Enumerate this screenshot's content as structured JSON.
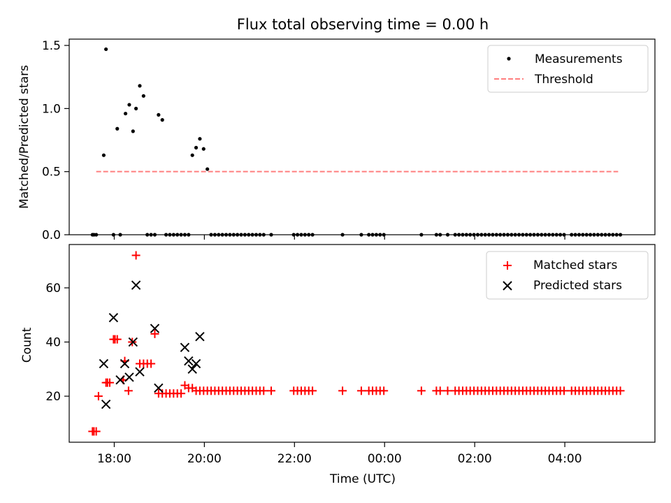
{
  "figure": {
    "title": "Flux total observing time = 0.00 h",
    "xlabel": "Time (UTC)"
  },
  "colors": {
    "measurement": "#000000",
    "threshold": "#ff7f7f",
    "matched": "#ff0000",
    "predicted": "#000000"
  },
  "chart_data": [
    {
      "type": "scatter",
      "panel": "top",
      "ylabel": "Matched/Predicted stars",
      "xlim": [
        "17:00",
        "06:00"
      ],
      "ylim": [
        0,
        1.55
      ],
      "yticks": [
        0.0,
        0.5,
        1.0,
        1.5
      ],
      "ytick_labels": [
        "0.0",
        "0.5",
        "1.0",
        "1.5"
      ],
      "xticks": [
        "18:00",
        "20:00",
        "22:00",
        "00:00",
        "02:00",
        "04:00"
      ],
      "xtick_labels_shown": false,
      "legend": "top-right",
      "series": [
        {
          "name": "Measurements",
          "marker": "dot",
          "x": [
            "17:31",
            "17:33",
            "17:36",
            "17:46",
            "17:49",
            "17:59",
            "18:04",
            "18:08",
            "18:15",
            "18:20",
            "18:25",
            "18:29",
            "18:34",
            "18:39",
            "18:44",
            "18:49",
            "18:54",
            "18:59",
            "19:04",
            "19:09",
            "19:14",
            "19:19",
            "19:24",
            "19:29",
            "19:34",
            "19:39",
            "19:44",
            "19:49",
            "19:54",
            "19:59",
            "20:04",
            "20:09",
            "20:14",
            "20:19",
            "20:24",
            "20:29",
            "20:34",
            "20:39",
            "20:44",
            "20:49",
            "20:54",
            "20:59",
            "21:04",
            "21:09",
            "21:14",
            "21:19",
            "21:29",
            "21:59",
            "22:04",
            "22:09",
            "22:14",
            "22:19",
            "22:24",
            "23:04",
            "23:29",
            "23:39",
            "23:44",
            "23:49",
            "23:54",
            "23:59",
            "00:49",
            "01:09",
            "01:14",
            "01:24",
            "01:34",
            "01:39",
            "01:44",
            "01:49",
            "01:54",
            "01:59",
            "02:04",
            "02:09",
            "02:14",
            "02:19",
            "02:24",
            "02:29",
            "02:34",
            "02:39",
            "02:44",
            "02:49",
            "02:54",
            "02:59",
            "03:04",
            "03:09",
            "03:14",
            "03:19",
            "03:24",
            "03:29",
            "03:34",
            "03:39",
            "03:44",
            "03:49",
            "03:54",
            "03:59",
            "04:09",
            "04:14",
            "04:19",
            "04:24",
            "04:29",
            "04:34",
            "04:39",
            "04:44",
            "04:49",
            "04:54",
            "04:59",
            "05:04",
            "05:09",
            "05:14"
          ],
          "y": [
            0,
            0,
            0,
            0.63,
            1.47,
            0,
            0.84,
            0,
            0.96,
            1.03,
            0.82,
            1.0,
            1.18,
            1.1,
            0,
            0,
            0,
            0.95,
            0.91,
            0,
            0,
            0,
            0,
            0,
            0,
            0,
            0.63,
            0.69,
            0.76,
            0.68,
            0.52,
            0,
            0,
            0,
            0,
            0,
            0,
            0,
            0,
            0,
            0,
            0,
            0,
            0,
            0,
            0,
            0,
            0,
            0,
            0,
            0,
            0,
            0,
            0,
            0,
            0,
            0,
            0,
            0,
            0,
            0,
            0,
            0,
            0,
            0,
            0,
            0,
            0,
            0,
            0,
            0,
            0,
            0,
            0,
            0,
            0,
            0,
            0,
            0,
            0,
            0,
            0,
            0,
            0,
            0,
            0,
            0,
            0,
            0,
            0,
            0,
            0,
            0,
            0,
            0,
            0,
            0,
            0,
            0,
            0,
            0,
            0,
            0,
            0,
            0,
            0,
            0,
            0
          ]
        },
        {
          "name": "Threshold",
          "marker": "dashed-line",
          "x": [
            "17:36",
            "05:11"
          ],
          "y": [
            0.5,
            0.5
          ]
        }
      ]
    },
    {
      "type": "scatter",
      "panel": "bottom",
      "ylabel": "Count",
      "xlim": [
        "17:00",
        "06:00"
      ],
      "ylim": [
        3,
        76
      ],
      "yticks": [
        20,
        40,
        60
      ],
      "ytick_labels": [
        "20",
        "40",
        "60"
      ],
      "xticks": [
        "18:00",
        "20:00",
        "22:00",
        "00:00",
        "02:00",
        "04:00"
      ],
      "xtick_labels": [
        "18:00",
        "20:00",
        "22:00",
        "00:00",
        "02:00",
        "04:00"
      ],
      "legend": "top-right",
      "series": [
        {
          "name": "Matched stars",
          "marker": "plus",
          "x": [
            "17:31",
            "17:33",
            "17:36",
            "17:39",
            "17:49",
            "17:51",
            "17:54",
            "17:59",
            "18:01",
            "18:04",
            "18:12",
            "18:14",
            "18:19",
            "18:24",
            "18:29",
            "18:34",
            "18:39",
            "18:44",
            "18:49",
            "18:54",
            "18:59",
            "19:04",
            "19:09",
            "19:14",
            "19:19",
            "19:24",
            "19:29",
            "19:34",
            "19:39",
            "19:44",
            "19:49",
            "19:54",
            "19:59",
            "20:04",
            "20:09",
            "20:14",
            "20:19",
            "20:24",
            "20:29",
            "20:34",
            "20:39",
            "20:44",
            "20:49",
            "20:54",
            "20:59",
            "21:04",
            "21:09",
            "21:14",
            "21:19",
            "21:29",
            "21:59",
            "22:04",
            "22:09",
            "22:14",
            "22:19",
            "22:24",
            "23:04",
            "23:29",
            "23:39",
            "23:44",
            "23:49",
            "23:54",
            "23:59",
            "00:49",
            "01:09",
            "01:14",
            "01:24",
            "01:34",
            "01:39",
            "01:44",
            "01:49",
            "01:54",
            "01:59",
            "02:04",
            "02:09",
            "02:14",
            "02:19",
            "02:24",
            "02:29",
            "02:34",
            "02:39",
            "02:44",
            "02:49",
            "02:54",
            "02:59",
            "03:04",
            "03:09",
            "03:14",
            "03:19",
            "03:24",
            "03:29",
            "03:34",
            "03:39",
            "03:44",
            "03:49",
            "03:54",
            "03:59",
            "04:09",
            "04:14",
            "04:19",
            "04:24",
            "04:29",
            "04:34",
            "04:39",
            "04:44",
            "04:49",
            "04:54",
            "04:59",
            "05:04",
            "05:09",
            "05:14"
          ],
          "y": [
            7,
            7,
            7,
            20,
            25,
            25,
            25,
            41,
            41,
            41,
            26,
            33,
            22,
            40,
            72,
            32,
            32,
            32,
            32,
            43,
            21,
            21,
            21,
            21,
            21,
            21,
            21,
            24,
            23,
            23,
            22,
            22,
            22,
            22,
            22,
            22,
            22,
            22,
            22,
            22,
            22,
            22,
            22,
            22,
            22,
            22,
            22,
            22,
            22,
            22,
            22,
            22,
            22,
            22,
            22,
            22,
            22,
            22,
            22,
            22,
            22,
            22,
            22,
            22,
            22,
            22,
            22,
            22,
            22,
            22,
            22,
            22,
            22,
            22,
            22,
            22,
            22,
            22,
            22,
            22,
            22,
            22,
            22,
            22,
            22,
            22,
            22,
            22,
            22,
            22,
            22,
            22,
            22,
            22,
            22,
            22,
            22,
            22,
            22,
            22,
            22,
            22,
            22,
            22,
            22,
            22,
            22,
            22,
            22,
            22,
            22
          ]
        },
        {
          "name": "Predicted stars",
          "marker": "x",
          "x": [
            "17:46",
            "17:49",
            "17:59",
            "18:08",
            "18:14",
            "18:20",
            "18:25",
            "18:29",
            "18:34",
            "18:54",
            "18:59",
            "19:34",
            "19:39",
            "19:44",
            "19:49",
            "19:54"
          ],
          "y": [
            32,
            17,
            49,
            26,
            32,
            27,
            40,
            61,
            29,
            45,
            23,
            38,
            33,
            30,
            32,
            42
          ]
        }
      ]
    }
  ]
}
